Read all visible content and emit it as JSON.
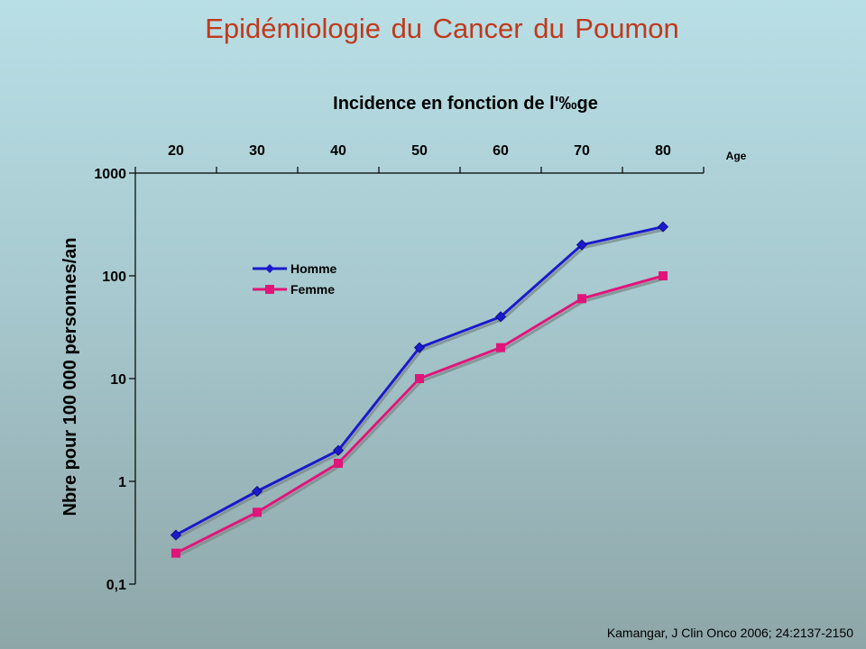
{
  "slide": {
    "title": "Epidémiologie du Cancer du Poumon",
    "citation": "Kamangar, J Clin Onco 2006; 24:2137-2150"
  },
  "chart_data": {
    "type": "line",
    "title": "Incidence en fonction de l'‰ge",
    "xlabel": "Age",
    "ylabel": "Nbre pour 100 000 personnes/an",
    "y_scale": "log",
    "ylim": [
      0.1,
      1000
    ],
    "y_tick_labels": [
      "1000",
      "100",
      "10",
      "1",
      "0,1"
    ],
    "x": [
      20,
      30,
      40,
      50,
      60,
      70,
      80
    ],
    "x_tick_labels": [
      "20",
      "30",
      "40",
      "50",
      "60",
      "70",
      "80"
    ],
    "x_axis_position": "top",
    "grid": false,
    "legend_position": "upper-left-inside",
    "series": [
      {
        "name": "Homme",
        "values": [
          0.3,
          0.8,
          2,
          20,
          40,
          200,
          300
        ],
        "color": "#1a1acc",
        "marker": "diamond"
      },
      {
        "name": "Femme",
        "values": [
          0.2,
          0.5,
          1.5,
          10,
          20,
          60,
          100
        ],
        "color": "#e0157a",
        "marker": "square"
      }
    ]
  }
}
